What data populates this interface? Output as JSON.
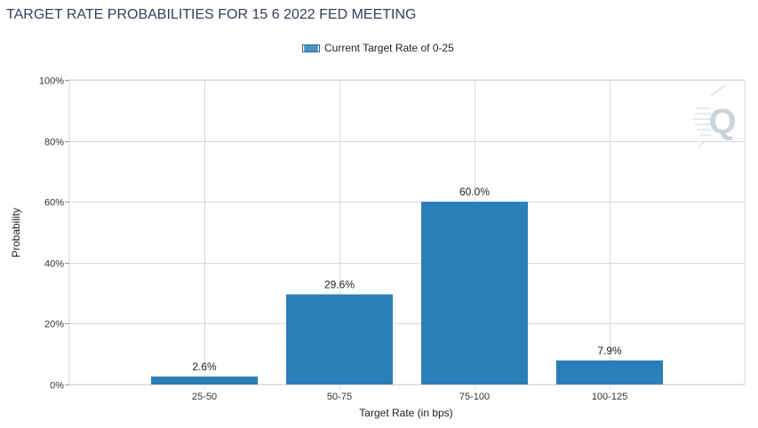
{
  "chart_data": {
    "type": "bar",
    "title": "TARGET RATE PROBABILITIES FOR 15 6 2022 FED MEETING",
    "categories": [
      "25-50",
      "50-75",
      "75-100",
      "100-125"
    ],
    "series": [
      {
        "name": "Current Target Rate of 0-25",
        "values": [
          2.6,
          29.6,
          60.0,
          7.9
        ],
        "labels": [
          "2.6%",
          "29.6%",
          "60.0%",
          "7.9%"
        ],
        "color": "#2b7fb8"
      }
    ],
    "xlabel": "Target Rate (in bps)",
    "ylabel": "Probability",
    "ylim": [
      0,
      100
    ],
    "yticks": [
      0,
      20,
      40,
      60,
      80,
      100
    ],
    "ytick_labels": [
      "0%",
      "20%",
      "40%",
      "60%",
      "80%",
      "100%"
    ],
    "grid": true,
    "legend_position": "top-center"
  },
  "colors": {
    "bar": "#2b7fb8",
    "grid": "#d9d9d9",
    "title": "#333f5c",
    "watermark": "#c8cfd8"
  },
  "icons": {
    "watermark": "quikstrike-q-logo"
  }
}
